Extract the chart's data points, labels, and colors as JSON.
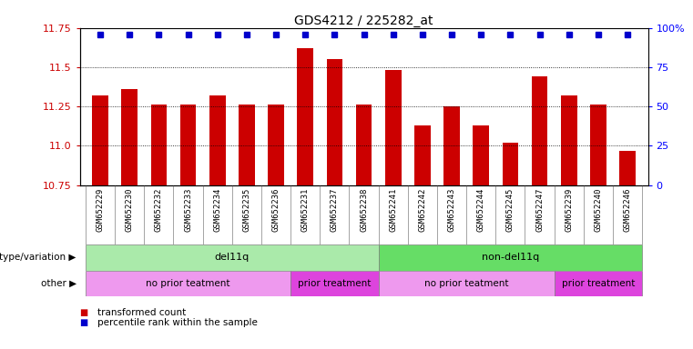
{
  "title": "GDS4212 / 225282_at",
  "samples": [
    "GSM652229",
    "GSM652230",
    "GSM652232",
    "GSM652233",
    "GSM652234",
    "GSM652235",
    "GSM652236",
    "GSM652231",
    "GSM652237",
    "GSM652238",
    "GSM652241",
    "GSM652242",
    "GSM652243",
    "GSM652244",
    "GSM652245",
    "GSM652247",
    "GSM652239",
    "GSM652240",
    "GSM652246"
  ],
  "bar_values": [
    11.32,
    11.36,
    11.26,
    11.26,
    11.32,
    11.26,
    11.26,
    11.62,
    11.55,
    11.26,
    11.48,
    11.13,
    11.25,
    11.13,
    11.02,
    11.44,
    11.32,
    11.26,
    10.97
  ],
  "bar_color": "#cc0000",
  "percentile_color": "#0000cc",
  "ylim_left": [
    10.75,
    11.75
  ],
  "ylim_right": [
    0,
    100
  ],
  "yticks_left": [
    10.75,
    11.0,
    11.25,
    11.5,
    11.75
  ],
  "yticks_right": [
    0,
    25,
    50,
    75,
    100
  ],
  "ytick_labels_right": [
    "0",
    "25",
    "50",
    "75",
    "100%"
  ],
  "grid_values": [
    11.0,
    11.25,
    11.5
  ],
  "genotype_groups": [
    {
      "label": "del11q",
      "start": 0,
      "end": 10,
      "color": "#aaeaaa"
    },
    {
      "label": "non-del11q",
      "start": 10,
      "end": 19,
      "color": "#66dd66"
    }
  ],
  "other_groups": [
    {
      "label": "no prior teatment",
      "start": 0,
      "end": 7,
      "color": "#ee99ee"
    },
    {
      "label": "prior treatment",
      "start": 7,
      "end": 10,
      "color": "#dd44dd"
    },
    {
      "label": "no prior teatment",
      "start": 10,
      "end": 16,
      "color": "#ee99ee"
    },
    {
      "label": "prior treatment",
      "start": 16,
      "end": 19,
      "color": "#dd44dd"
    }
  ],
  "legend_items": [
    {
      "label": "transformed count",
      "color": "#cc0000"
    },
    {
      "label": "percentile rank within the sample",
      "color": "#0000cc"
    }
  ],
  "bar_width": 0.55,
  "percentile_marker_size": 5,
  "xtick_bg_color": "#d8d8d8"
}
